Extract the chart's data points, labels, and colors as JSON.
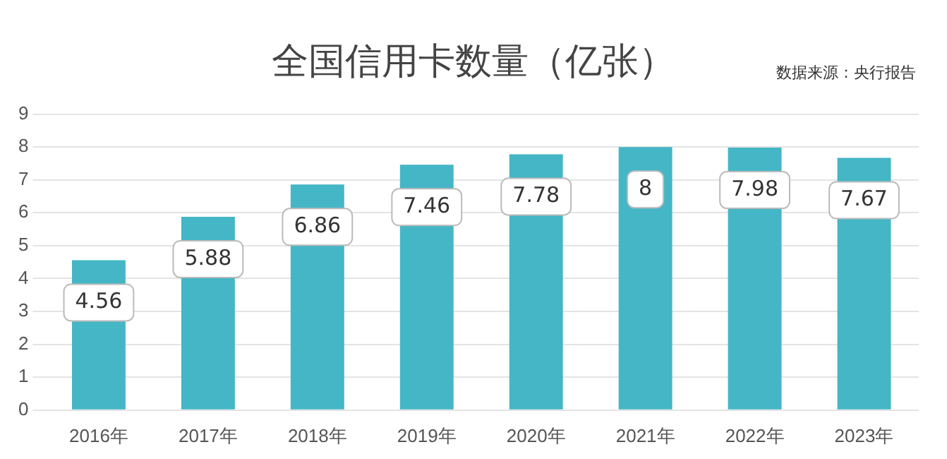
{
  "chart_data": {
    "type": "bar",
    "title": "全国信用卡数量（亿张）",
    "annotations": [
      "数据来源：央行报告"
    ],
    "categories": [
      "2016年",
      "2017年",
      "2018年",
      "2019年",
      "2020年",
      "2021年",
      "2022年",
      "2023年"
    ],
    "values": [
      4.56,
      5.88,
      6.86,
      7.46,
      7.78,
      8,
      7.98,
      7.67
    ],
    "color": "#44b6c6",
    "ylim": [
      0,
      9
    ],
    "yticks": [
      0,
      1,
      2,
      3,
      4,
      5,
      6,
      7,
      8,
      9
    ],
    "grid": "y",
    "data_labels": true,
    "legend": false
  }
}
